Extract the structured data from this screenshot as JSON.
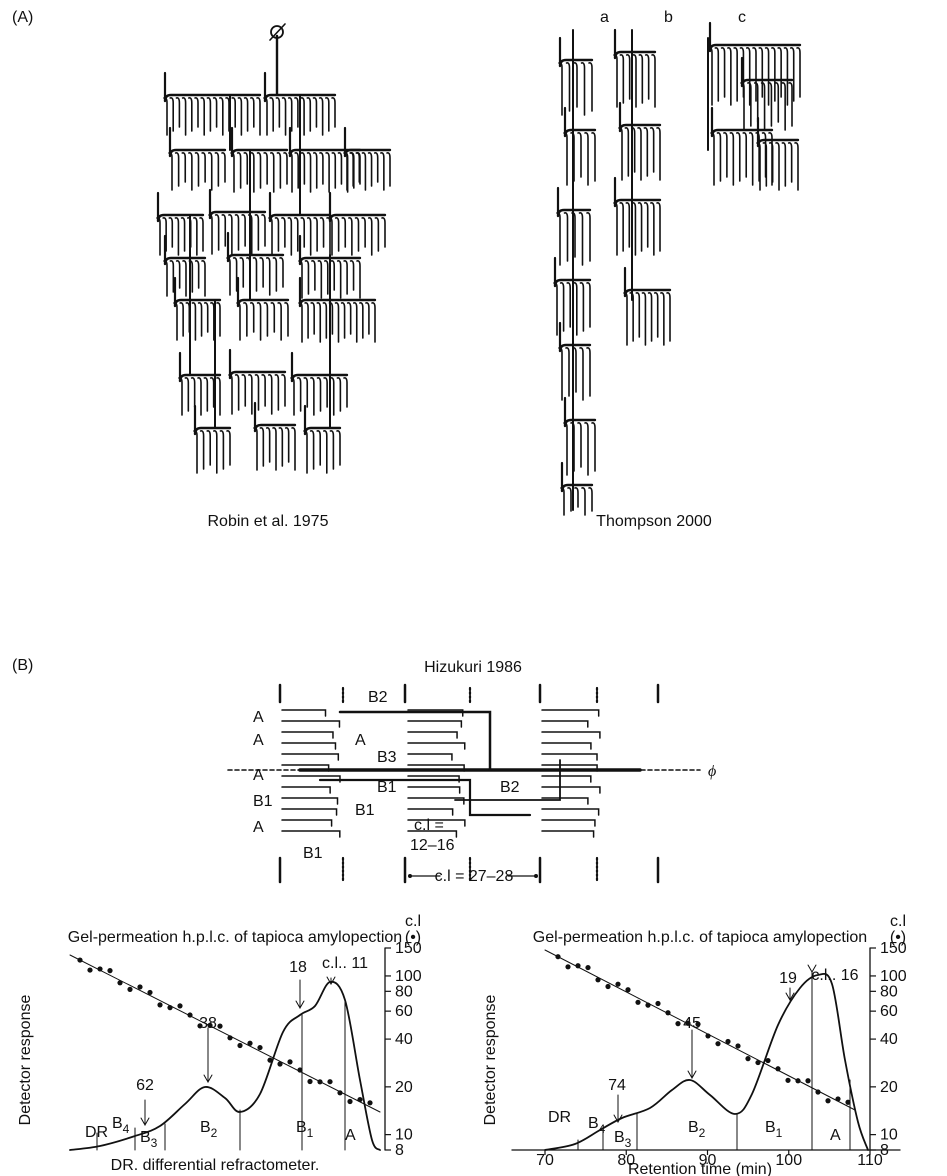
{
  "panel_a": {
    "label": "(A)",
    "tree_labels": [
      "a",
      "b",
      "c"
    ],
    "captions": [
      "Robin et al. 1975",
      "Thompson 2000"
    ]
  },
  "panel_b": {
    "label": "(B)",
    "title": "Hizukuri 1986",
    "chain_labels": [
      "B2",
      "A",
      "A",
      "A",
      "B3",
      "A",
      "B1",
      "B2",
      "B1",
      "B1",
      "A",
      "B1"
    ],
    "phi": "ϕ",
    "cl_short": [
      "c.l =",
      "12–16"
    ],
    "cl_long": "c.l = 27–28"
  },
  "gpc": [
    {
      "title": "Gel-permeation h.p.l.c. of tapioca amylopection",
      "y_label": "Detector response",
      "footnote": "DR. differential refractometer.",
      "axis_title": "c.l",
      "axis_marker": "(•)",
      "yticks": [
        150,
        100,
        80,
        60,
        40,
        20,
        10,
        8
      ],
      "peak_labels": [
        62,
        38,
        18,
        "c.l.. 11"
      ],
      "fractions": [
        "DR",
        {
          "letter": "B",
          "sub": "4"
        },
        {
          "letter": "B",
          "sub": "3"
        },
        {
          "letter": "B",
          "sub": "2"
        },
        {
          "letter": "B",
          "sub": "1"
        },
        "A"
      ]
    },
    {
      "title": "Gel-permeation h.p.l.c. of tapioca amylopection",
      "y_label": "Detector response",
      "x_label": "Retention time (min)",
      "axis_title": "c.l",
      "axis_marker": "(•)",
      "yticks": [
        150,
        100,
        80,
        60,
        40,
        20,
        10,
        8
      ],
      "xticks": [
        70,
        80,
        90,
        100,
        110
      ],
      "peak_labels": [
        74,
        45,
        19,
        "c.l.. 16"
      ],
      "fractions": [
        "DR",
        {
          "letter": "B",
          "sub": "4"
        },
        {
          "letter": "B",
          "sub": "3"
        },
        {
          "letter": "B",
          "sub": "2"
        },
        {
          "letter": "B",
          "sub": "1"
        },
        "A"
      ]
    }
  ]
}
